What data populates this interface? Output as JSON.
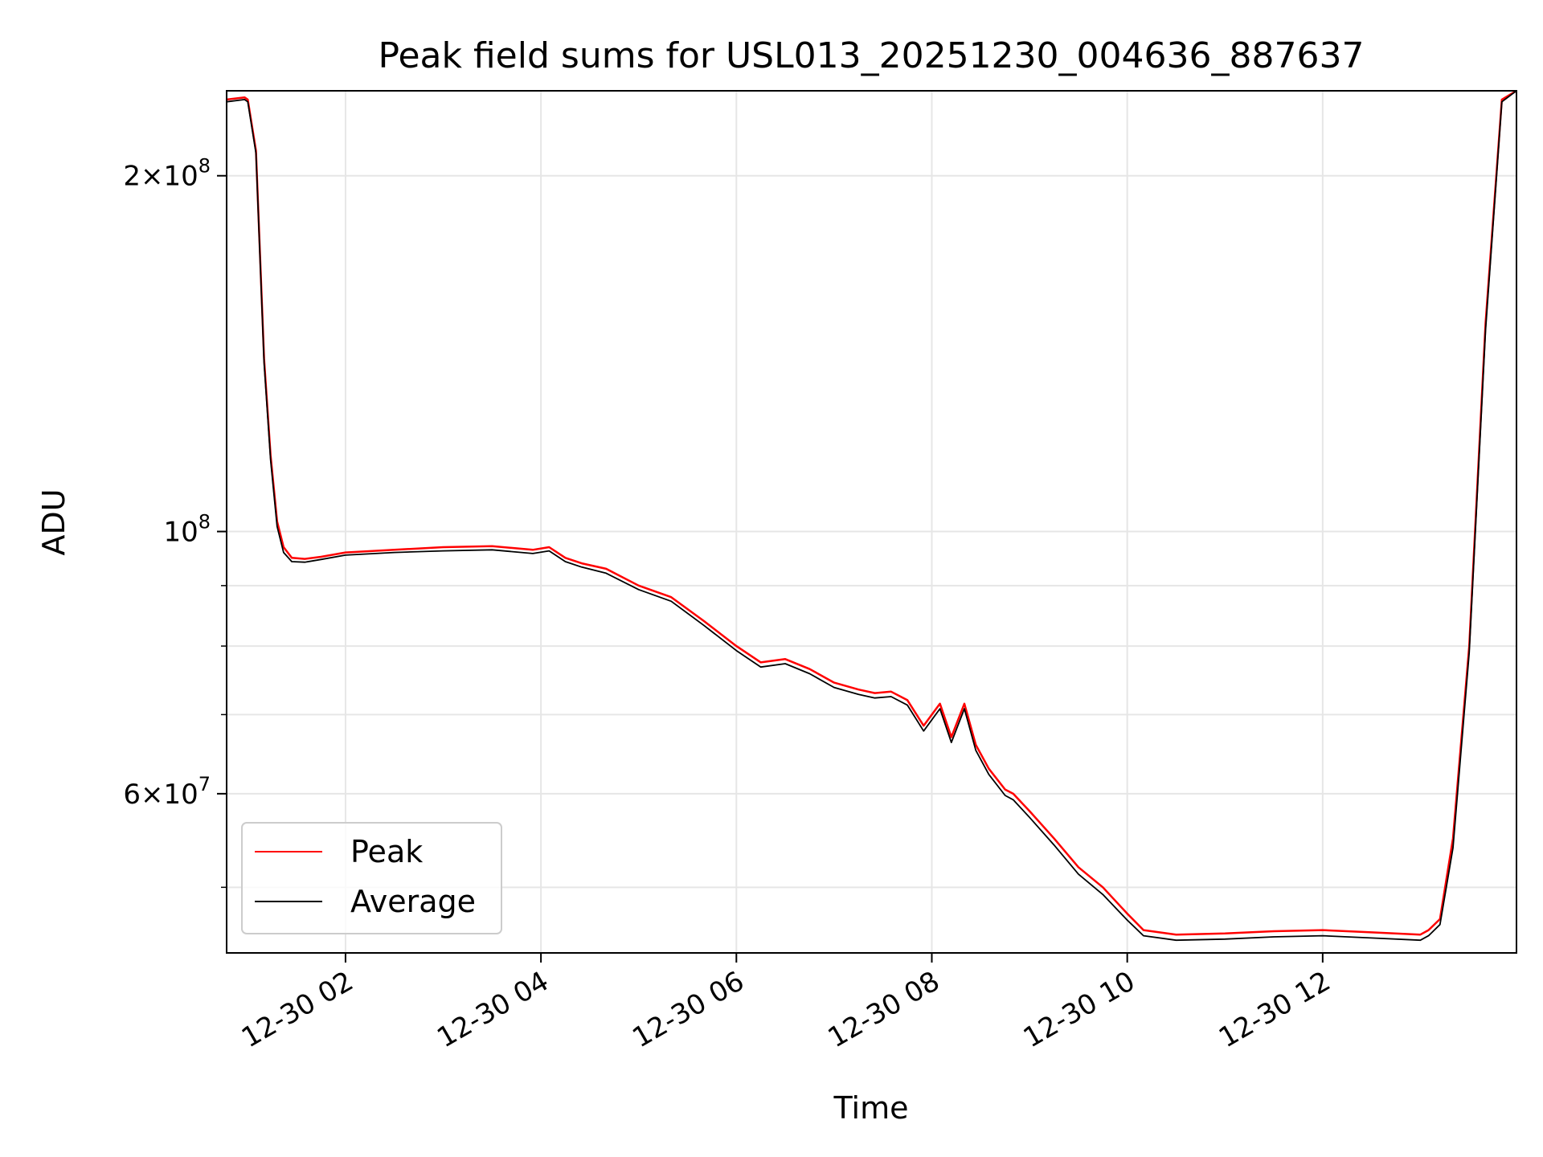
{
  "chart_data": {
    "type": "line",
    "title": "Peak field sums for USL013_20251230_004636_887637",
    "xlabel": "Time",
    "ylabel": "ADU",
    "y_scale": "log",
    "ylim": [
      44000000,
      236000000
    ],
    "xlim": [
      "12-30 00:47",
      "12-30 13:59"
    ],
    "grid": true,
    "legend_position": "lower-left",
    "x_ticks": [
      {
        "value": "12-30 02:00",
        "label": "12-30 02"
      },
      {
        "value": "12-30 04:00",
        "label": "12-30 04"
      },
      {
        "value": "12-30 06:00",
        "label": "12-30 06"
      },
      {
        "value": "12-30 08:00",
        "label": "12-30 08"
      },
      {
        "value": "12-30 10:00",
        "label": "12-30 10"
      },
      {
        "value": "12-30 12:00",
        "label": "12-30 12"
      }
    ],
    "y_ticks": [
      {
        "value": 200000000,
        "mantissa": "2",
        "exponent": "8"
      },
      {
        "value": 100000000,
        "mantissa": "",
        "exponent": "8"
      },
      {
        "value": 60000000,
        "mantissa": "6",
        "exponent": "7"
      }
    ],
    "y_minor_ticks": [
      50000000,
      70000000,
      80000000,
      90000000
    ],
    "series": [
      {
        "name": "Peak",
        "color": "#ff0000",
        "x": [
          "12-30 00:47",
          "12-30 00:58",
          "12-30 01:00",
          "12-30 01:05",
          "12-30 01:10",
          "12-30 01:14",
          "12-30 01:18",
          "12-30 01:22",
          "12-30 01:27",
          "12-30 01:35",
          "12-30 01:45",
          "12-30 02:00",
          "12-30 02:30",
          "12-30 03:00",
          "12-30 03:30",
          "12-30 03:55",
          "12-30 04:05",
          "12-30 04:15",
          "12-30 04:25",
          "12-30 04:40",
          "12-30 05:00",
          "12-30 05:20",
          "12-30 05:40",
          "12-30 06:00",
          "12-30 06:15",
          "12-30 06:30",
          "12-30 06:45",
          "12-30 07:00",
          "12-30 07:15",
          "12-30 07:25",
          "12-30 07:35",
          "12-30 07:45",
          "12-30 07:55",
          "12-30 08:05",
          "12-30 08:12",
          "12-30 08:20",
          "12-30 08:27",
          "12-30 08:35",
          "12-30 08:45",
          "12-30 08:50",
          "12-30 09:00",
          "12-30 09:15",
          "12-30 09:30",
          "12-30 09:45",
          "12-30 10:00",
          "12-30 10:10",
          "12-30 10:30",
          "12-30 11:00",
          "12-30 11:30",
          "12-30 12:00",
          "12-30 12:30",
          "12-30 13:00",
          "12-30 13:05",
          "12-30 13:12",
          "12-30 13:20",
          "12-30 13:30",
          "12-30 13:40",
          "12-30 13:50",
          "12-30 13:59"
        ],
        "values": [
          232000000,
          233000000,
          232000000,
          210000000,
          140000000,
          116000000,
          102000000,
          97000000,
          95000000,
          94800000,
          95200000,
          96000000,
          96500000,
          97000000,
          97200000,
          96500000,
          97000000,
          95000000,
          94000000,
          93000000,
          90000000,
          88000000,
          84000000,
          80000000,
          77500000,
          78000000,
          76500000,
          74500000,
          73500000,
          73000000,
          73200000,
          72000000,
          68500000,
          71500000,
          67000000,
          71500000,
          66000000,
          63000000,
          60500000,
          60000000,
          58000000,
          55000000,
          52000000,
          50000000,
          47500000,
          46000000,
          45600000,
          45700000,
          45900000,
          46000000,
          45800000,
          45600000,
          46000000,
          47000000,
          55000000,
          80000000,
          150000000,
          232000000,
          236000000
        ]
      },
      {
        "name": "Average",
        "color": "#000000",
        "x": [
          "12-30 00:47",
          "12-30 00:58",
          "12-30 01:00",
          "12-30 01:05",
          "12-30 01:10",
          "12-30 01:14",
          "12-30 01:18",
          "12-30 01:22",
          "12-30 01:27",
          "12-30 01:35",
          "12-30 01:45",
          "12-30 02:00",
          "12-30 02:30",
          "12-30 03:00",
          "12-30 03:30",
          "12-30 03:55",
          "12-30 04:05",
          "12-30 04:15",
          "12-30 04:25",
          "12-30 04:40",
          "12-30 05:00",
          "12-30 05:20",
          "12-30 05:40",
          "12-30 06:00",
          "12-30 06:15",
          "12-30 06:30",
          "12-30 06:45",
          "12-30 07:00",
          "12-30 07:15",
          "12-30 07:25",
          "12-30 07:35",
          "12-30 07:45",
          "12-30 07:55",
          "12-30 08:05",
          "12-30 08:12",
          "12-30 08:20",
          "12-30 08:27",
          "12-30 08:35",
          "12-30 08:45",
          "12-30 08:50",
          "12-30 09:00",
          "12-30 09:15",
          "12-30 09:30",
          "12-30 09:45",
          "12-30 10:00",
          "12-30 10:10",
          "12-30 10:30",
          "12-30 11:00",
          "12-30 11:30",
          "12-30 12:00",
          "12-30 12:30",
          "12-30 13:00",
          "12-30 13:05",
          "12-30 13:12",
          "12-30 13:20",
          "12-30 13:30",
          "12-30 13:40",
          "12-30 13:50",
          "12-30 13:59"
        ],
        "values": [
          231000000,
          232000000,
          231000000,
          209000000,
          139000000,
          115000000,
          101000000,
          96000000,
          94300000,
          94200000,
          94700000,
          95500000,
          96000000,
          96300000,
          96500000,
          95800000,
          96300000,
          94300000,
          93300000,
          92200000,
          89300000,
          87300000,
          83300000,
          79300000,
          76800000,
          77300000,
          75800000,
          73800000,
          72800000,
          72300000,
          72500000,
          71300000,
          67800000,
          70800000,
          66300000,
          70800000,
          65300000,
          62300000,
          59800000,
          59300000,
          57300000,
          54300000,
          51300000,
          49300000,
          46900000,
          45500000,
          45100000,
          45200000,
          45400000,
          45500000,
          45300000,
          45100000,
          45500000,
          46500000,
          54000000,
          79000000,
          148000000,
          231000000,
          236000000
        ]
      }
    ]
  }
}
